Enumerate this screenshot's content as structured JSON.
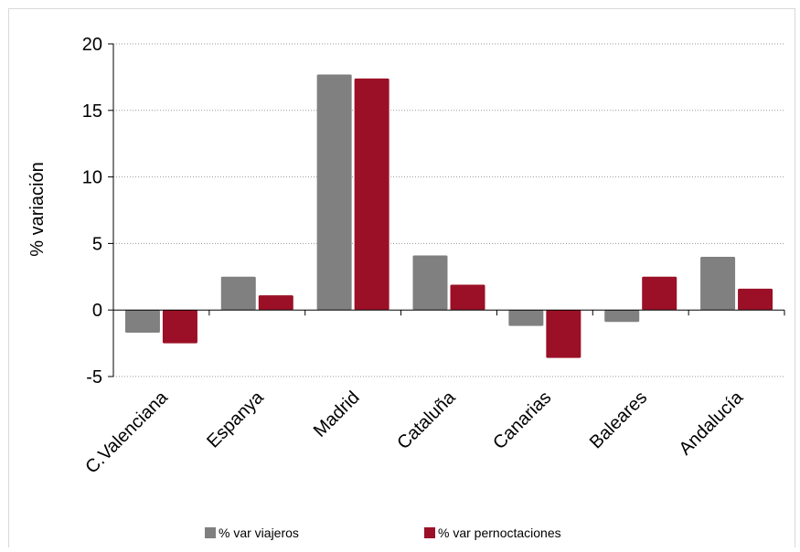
{
  "chart_data": {
    "type": "bar",
    "title": "",
    "xlabel": "",
    "ylabel": "% variación",
    "ylim": [
      -5,
      20
    ],
    "yticks": [
      -5,
      0,
      5,
      10,
      15,
      20
    ],
    "grid": true,
    "legend_position": "bottom",
    "categories": [
      "C.Valenciana",
      "Espanya",
      "Madrid",
      "Cataluña",
      "Canarias",
      "Baleares",
      "Andalucía"
    ],
    "series": [
      {
        "name": "% var viajeros",
        "color": "#808080",
        "values": [
          -1.7,
          2.5,
          17.7,
          4.1,
          -1.2,
          -0.9,
          4.0
        ]
      },
      {
        "name": "% var pernoctaciones",
        "color": "#9b1026",
        "values": [
          -2.5,
          1.1,
          17.4,
          1.9,
          -3.6,
          2.5,
          1.6
        ]
      }
    ]
  }
}
